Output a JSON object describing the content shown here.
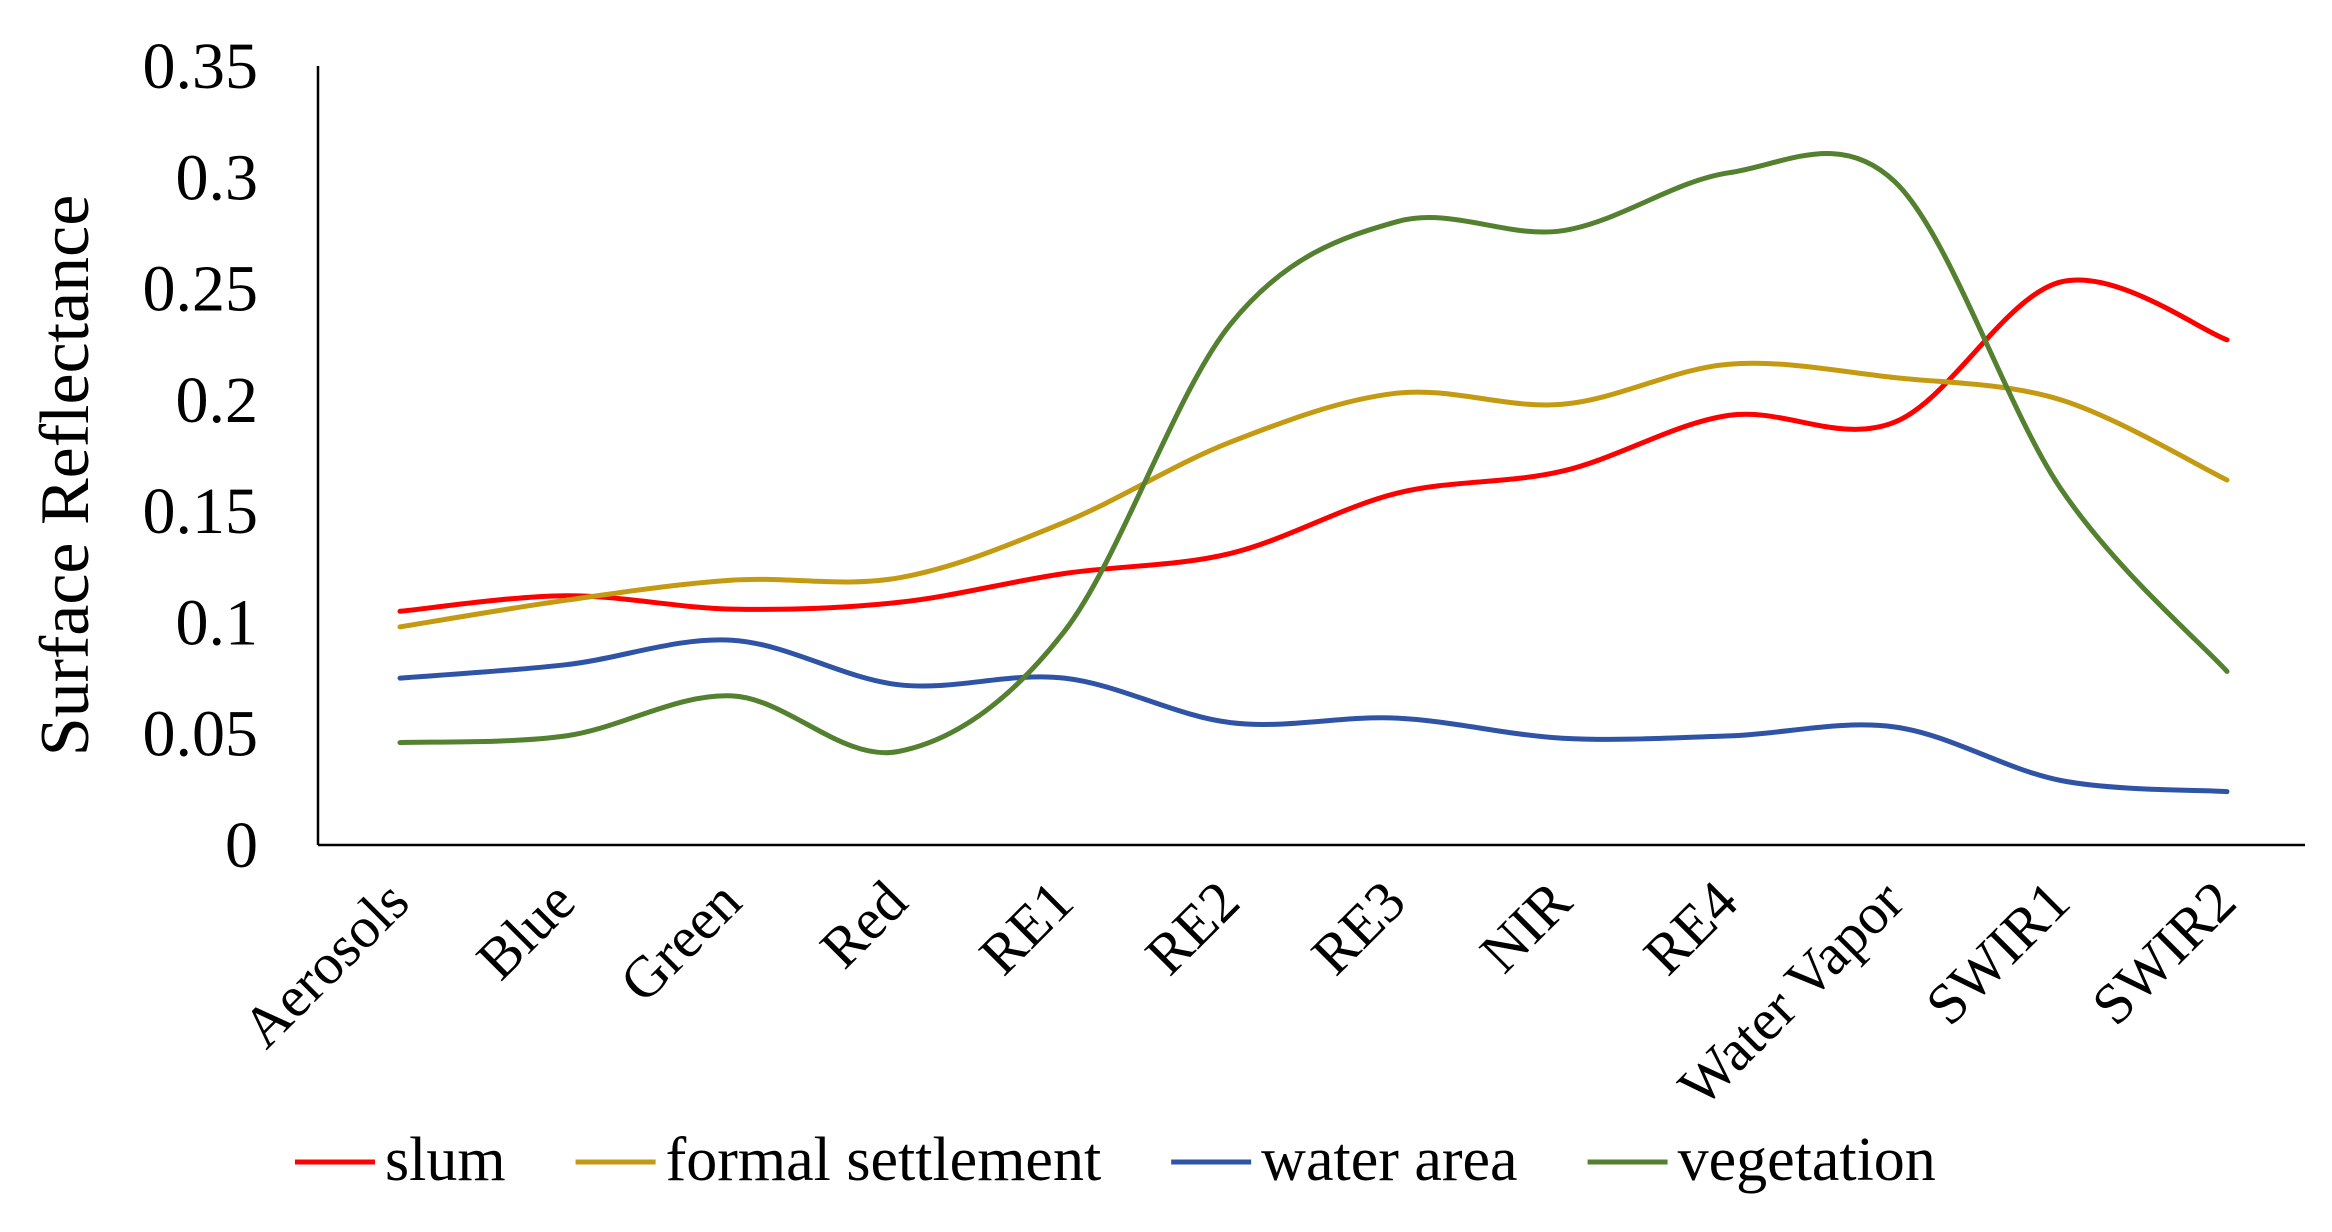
{
  "chart_data": {
    "type": "line",
    "title": "",
    "xlabel": "",
    "ylabel": "Surface Reflectance",
    "ylim": [
      0,
      0.35
    ],
    "yticks": [
      "0",
      "0.05",
      "0.1",
      "0.15",
      "0.2",
      "0.25",
      "0.3",
      "0.35"
    ],
    "categories": [
      "Aerosols",
      "Blue",
      "Green",
      "Red",
      "RE1",
      "RE2",
      "RE3",
      "NIR",
      "RE4",
      "Water Vapor",
      "SWIR1",
      "SWIR2"
    ],
    "grid": false,
    "legend_position": "bottom",
    "series": [
      {
        "name": "slum",
        "color": "#ff0000",
        "values": [
          0.105,
          0.112,
          0.106,
          0.109,
          0.122,
          0.131,
          0.158,
          0.168,
          0.193,
          0.19,
          0.253,
          0.227
        ]
      },
      {
        "name": "formal settlement",
        "color": "#c49a12",
        "values": [
          0.098,
          0.11,
          0.119,
          0.12,
          0.145,
          0.181,
          0.203,
          0.198,
          0.216,
          0.21,
          0.2,
          0.164
        ]
      },
      {
        "name": "water area",
        "color": "#2f54a6",
        "values": [
          0.075,
          0.081,
          0.092,
          0.072,
          0.075,
          0.055,
          0.057,
          0.048,
          0.049,
          0.053,
          0.029,
          0.024
        ]
      },
      {
        "name": "vegetation",
        "color": "#53812f",
        "values": [
          0.046,
          0.049,
          0.067,
          0.042,
          0.096,
          0.234,
          0.28,
          0.276,
          0.302,
          0.298,
          0.16,
          0.078
        ]
      }
    ]
  }
}
